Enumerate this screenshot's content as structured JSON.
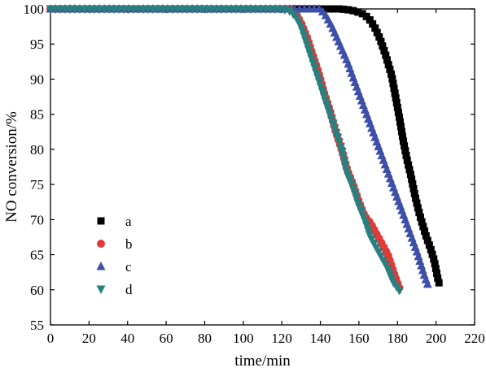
{
  "chart_data": {
    "type": "line",
    "xlabel": "time/min",
    "ylabel": "NO conversion/%",
    "xlim": [
      0,
      220
    ],
    "ylim": [
      55,
      100
    ],
    "xticks": [
      0,
      20,
      40,
      60,
      80,
      100,
      120,
      140,
      160,
      180,
      200,
      220
    ],
    "yticks": [
      55,
      60,
      65,
      70,
      75,
      80,
      85,
      90,
      95,
      100
    ],
    "grid": false,
    "legend_position": "lower-left",
    "series": [
      {
        "name": "a",
        "marker": "square",
        "color": "#000000",
        "x": [
          0,
          20,
          40,
          60,
          80,
          100,
          120,
          140,
          145,
          150,
          154,
          158,
          162,
          165,
          168,
          171,
          174,
          177,
          179,
          181,
          183,
          185,
          187,
          189,
          191,
          193,
          195,
          197,
          199,
          201,
          202
        ],
        "y": [
          100,
          100,
          100,
          100,
          100,
          100,
          100,
          100,
          100,
          100,
          99.9,
          99.7,
          99.3,
          98.7,
          97.5,
          95.7,
          93.3,
          90.5,
          87.5,
          84.5,
          81.2,
          78.5,
          76.2,
          73.5,
          71.2,
          69.3,
          67.5,
          66.0,
          64.2,
          61.5,
          60.5
        ]
      },
      {
        "name": "b",
        "marker": "circle",
        "color": "#e53935",
        "x": [
          0,
          20,
          40,
          60,
          80,
          100,
          120,
          124,
          127,
          130,
          133,
          136,
          139,
          142,
          145,
          148,
          151,
          154,
          157,
          160,
          163,
          166,
          169,
          172,
          175,
          178,
          181
        ],
        "y": [
          100,
          100,
          100,
          100,
          100,
          100,
          100,
          100,
          99.5,
          98.0,
          96.0,
          93.5,
          91.0,
          88.0,
          85.5,
          82.5,
          80.0,
          77.0,
          75.0,
          72.5,
          70.5,
          69.5,
          68.0,
          66.5,
          65.0,
          62.5,
          60.2
        ]
      },
      {
        "name": "c",
        "marker": "triangle-up",
        "color": "#3d4fa8",
        "x": [
          0,
          20,
          40,
          60,
          80,
          100,
          120,
          140,
          143,
          146,
          150,
          154,
          158,
          162,
          166,
          170,
          174,
          178,
          182,
          186,
          190,
          194,
          196
        ],
        "y": [
          100,
          100,
          100,
          100,
          100,
          100,
          100,
          100,
          99.0,
          97.5,
          95.0,
          92.5,
          89.5,
          86.5,
          83.5,
          80.5,
          77.5,
          74.5,
          71.5,
          68.5,
          65.5,
          62.0,
          60.5
        ]
      },
      {
        "name": "d",
        "marker": "triangle-down",
        "color": "#2a7f7f",
        "x": [
          0,
          20,
          40,
          60,
          80,
          100,
          120,
          124,
          127,
          130,
          133,
          136,
          139,
          142,
          145,
          148,
          151,
          154,
          157,
          160,
          163,
          166,
          169,
          172,
          175,
          178,
          182
        ],
        "y": [
          100,
          100,
          100,
          100,
          100,
          100,
          100,
          99.7,
          99.0,
          97.5,
          95.0,
          92.5,
          90.0,
          87.5,
          85.0,
          82.5,
          80.0,
          76.5,
          74.5,
          72.0,
          70.0,
          67.5,
          66.0,
          64.5,
          63.0,
          61.0,
          59.5
        ]
      }
    ]
  }
}
